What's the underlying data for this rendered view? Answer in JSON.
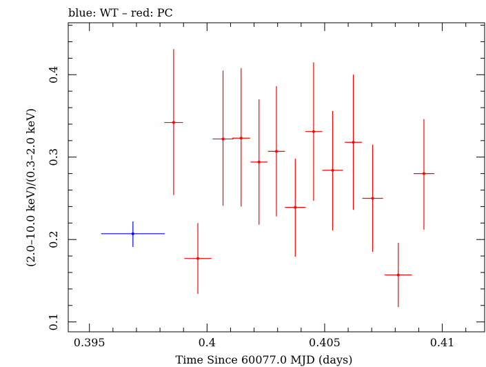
{
  "chart_data": {
    "type": "scatter",
    "title": "blue: WT – red: PC",
    "xlabel": "Time Since 60077.0 MJD (days)",
    "ylabel": "(2.0–10.0 keV)/(0.3–2.0 keV)",
    "xlim": [
      0.3941,
      0.4118
    ],
    "ylim": [
      0.088,
      0.463
    ],
    "x_ticks": [
      0.395,
      0.4,
      0.405,
      0.41
    ],
    "x_tick_labels": [
      "0.395",
      "0.4",
      "0.405",
      "0.41"
    ],
    "y_ticks": [
      0.1,
      0.2,
      0.3,
      0.4
    ],
    "y_tick_labels": [
      "0.1",
      "0.2",
      "0.3",
      "0.4"
    ],
    "grid": false,
    "series": [
      {
        "name": "WT",
        "color": "#0000ff",
        "points": [
          {
            "x": 0.39685,
            "y": 0.207,
            "xerr": 0.00135,
            "ylo": 0.191,
            "yhi": 0.222
          }
        ]
      },
      {
        "name": "PC",
        "color": "#ff0000",
        "points": [
          {
            "x": 0.39858,
            "y": 0.342,
            "xerr": 0.0004,
            "ylo": 0.254,
            "yhi": 0.431
          },
          {
            "x": 0.39961,
            "y": 0.177,
            "xerr": 0.00058,
            "ylo": 0.134,
            "yhi": 0.22
          },
          {
            "x": 0.40068,
            "y": 0.322,
            "xerr": 0.00044,
            "ylo": 0.241,
            "yhi": 0.405
          },
          {
            "x": 0.40145,
            "y": 0.323,
            "xerr": 0.00038,
            "ylo": 0.24,
            "yhi": 0.408
          },
          {
            "x": 0.40221,
            "y": 0.294,
            "xerr": 0.00036,
            "ylo": 0.218,
            "yhi": 0.37
          },
          {
            "x": 0.40295,
            "y": 0.307,
            "xerr": 0.00036,
            "ylo": 0.228,
            "yhi": 0.386
          },
          {
            "x": 0.40375,
            "y": 0.239,
            "xerr": 0.00044,
            "ylo": 0.179,
            "yhi": 0.298
          },
          {
            "x": 0.40453,
            "y": 0.331,
            "xerr": 0.00036,
            "ylo": 0.247,
            "yhi": 0.415
          },
          {
            "x": 0.40534,
            "y": 0.284,
            "xerr": 0.00044,
            "ylo": 0.211,
            "yhi": 0.356
          },
          {
            "x": 0.40622,
            "y": 0.318,
            "xerr": 0.00036,
            "ylo": 0.236,
            "yhi": 0.4
          },
          {
            "x": 0.40704,
            "y": 0.25,
            "xerr": 0.00044,
            "ylo": 0.185,
            "yhi": 0.315
          },
          {
            "x": 0.40813,
            "y": 0.157,
            "xerr": 0.00058,
            "ylo": 0.118,
            "yhi": 0.196
          },
          {
            "x": 0.40922,
            "y": 0.28,
            "xerr": 0.00044,
            "ylo": 0.212,
            "yhi": 0.346
          }
        ]
      }
    ]
  }
}
